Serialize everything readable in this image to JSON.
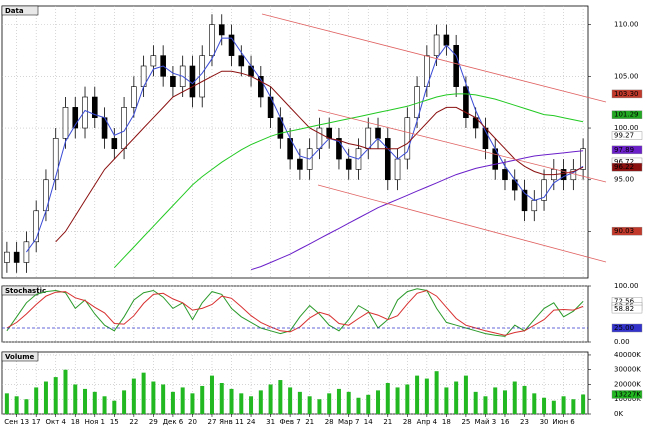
{
  "chart_data": [
    {
      "type": "candlestick",
      "title": "Data",
      "ylim": [
        85.5,
        111.8
      ],
      "yticks": [
        {
          "value": 110,
          "label": "110.00"
        },
        {
          "value": 105,
          "label": "105.00"
        },
        {
          "value": 100,
          "label": "100.00"
        },
        {
          "value": 95,
          "label": "95.00"
        },
        {
          "value": 90,
          "label": "90.00"
        }
      ],
      "grid": true,
      "open": [
        87,
        88,
        87,
        89,
        92,
        95,
        99,
        102,
        100,
        103,
        101,
        99,
        98,
        102,
        104,
        106,
        107,
        105,
        104,
        106,
        103,
        107,
        110,
        109,
        107,
        106,
        105,
        103,
        101,
        99,
        97,
        96,
        98,
        100,
        99,
        97,
        96,
        98,
        100,
        99,
        95,
        97,
        101,
        104,
        107,
        109,
        108,
        104,
        101,
        100,
        98,
        96,
        95,
        94,
        92,
        93,
        95,
        96,
        95,
        96
      ],
      "high": [
        89,
        89,
        90,
        93,
        96,
        100,
        103,
        103,
        104,
        104,
        102,
        100,
        103,
        105,
        107,
        108,
        108,
        106,
        107,
        107,
        108,
        111,
        111,
        110,
        108,
        107,
        106,
        104,
        102,
        100,
        98,
        99,
        101,
        101,
        100,
        98,
        99,
        101,
        101,
        100,
        98,
        102,
        105,
        108,
        110,
        110,
        109,
        105,
        102,
        101,
        99,
        97,
        96,
        95,
        94,
        96,
        97,
        97,
        97,
        99
      ],
      "low": [
        86,
        86,
        86,
        88,
        91,
        94,
        98,
        99,
        99,
        100,
        98,
        97,
        97,
        101,
        103,
        105,
        104,
        103,
        103,
        102,
        102,
        106,
        108,
        106,
        105,
        104,
        102,
        100,
        98,
        96,
        95,
        95,
        97,
        98,
        96,
        95,
        95,
        97,
        98,
        94,
        94,
        96,
        100,
        103,
        106,
        107,
        103,
        100,
        99,
        97,
        95,
        94,
        93,
        91,
        91,
        92,
        94,
        94,
        94,
        95
      ],
      "close": [
        88,
        87,
        89,
        92,
        95,
        99,
        102,
        100,
        103,
        101,
        99,
        98,
        102,
        104,
        106,
        107,
        105,
        104,
        106,
        103,
        107,
        110,
        109,
        107,
        106,
        105,
        103,
        101,
        99,
        97,
        96,
        98,
        100,
        99,
        97,
        96,
        98,
        100,
        99,
        95,
        97,
        101,
        104,
        107,
        109,
        108,
        104,
        101,
        100,
        98,
        96,
        95,
        94,
        92,
        93,
        95,
        96,
        95,
        96,
        98
      ],
      "series": [
        {
          "color": "#3a4bd6",
          "values": [
            null,
            null,
            88,
            89.3,
            92,
            95.3,
            98.7,
            100.3,
            101.7,
            101.3,
            101,
            99.3,
            99.7,
            101.3,
            104,
            105.7,
            106,
            105.3,
            105,
            104.3,
            105.3,
            106.7,
            108.7,
            108.7,
            107.3,
            106,
            104.7,
            103,
            101,
            99,
            97.3,
            97,
            98,
            99,
            98.7,
            97.3,
            97,
            98,
            99,
            98,
            97,
            97.7,
            100.7,
            104,
            106.7,
            108,
            107,
            104.3,
            101.7,
            99.7,
            98,
            96.3,
            95,
            93.7,
            93,
            93.3,
            94.7,
            95.3,
            95.7,
            96.3
          ]
        },
        {
          "color": "#8b1010",
          "values": [
            null,
            null,
            null,
            null,
            null,
            89,
            90,
            91.5,
            93,
            94.5,
            96,
            97,
            98,
            99,
            100,
            101,
            102,
            103,
            103.5,
            104,
            104.5,
            105,
            105.5,
            105.5,
            105.3,
            105,
            104.5,
            104,
            103,
            102,
            101,
            100,
            99.5,
            99,
            98.8,
            98.5,
            98.3,
            98,
            98,
            98,
            98,
            98.5,
            99.5,
            100.5,
            101.5,
            102,
            102,
            101.5,
            101,
            100,
            99,
            98,
            97,
            96.3,
            95.8,
            95.5,
            95.5,
            95.6,
            95.8,
            96.2
          ]
        },
        {
          "color": "#22c922",
          "values": [
            null,
            null,
            null,
            null,
            null,
            null,
            null,
            null,
            null,
            null,
            null,
            86.5,
            87.5,
            88.5,
            89.5,
            90.5,
            91.5,
            92.5,
            93.5,
            94.5,
            95.3,
            96,
            96.7,
            97.3,
            97.9,
            98.4,
            98.8,
            99.2,
            99.5,
            99.7,
            99.9,
            100.1,
            100.3,
            100.5,
            100.7,
            100.9,
            101.1,
            101.3,
            101.5,
            101.7,
            101.9,
            102.1,
            102.4,
            102.7,
            103,
            103.2,
            103.3,
            103.3,
            103.2,
            103,
            102.8,
            102.5,
            102.2,
            101.9,
            101.6,
            101.3,
            101.2,
            101,
            100.8,
            100.6
          ]
        },
        {
          "color": "#6a1fc9",
          "values": [
            null,
            null,
            null,
            null,
            null,
            null,
            null,
            null,
            null,
            null,
            null,
            null,
            null,
            null,
            null,
            null,
            null,
            null,
            null,
            null,
            null,
            null,
            null,
            null,
            null,
            86.3,
            86.6,
            87,
            87.4,
            87.8,
            88.3,
            88.8,
            89.3,
            89.8,
            90.3,
            90.8,
            91.3,
            91.8,
            92.3,
            92.7,
            93.1,
            93.5,
            93.9,
            94.3,
            94.7,
            95.1,
            95.5,
            95.8,
            96.1,
            96.3,
            96.5,
            96.7,
            96.9,
            97.1,
            97.3,
            97.4,
            97.5,
            97.6,
            97.7,
            97.8
          ]
        }
      ],
      "markers": [
        {
          "value": 103.3,
          "label": "103.30",
          "color": "#c0392b"
        },
        {
          "value": 101.29,
          "label": "101.29",
          "color": "#22a822"
        },
        {
          "value": 99.27,
          "label": "99.27",
          "color": "#ffffff"
        },
        {
          "value": 97.89,
          "label": "97.89",
          "color": "#6a1fc9"
        },
        {
          "value": 96.72,
          "label": "96.72",
          "color": "#ffffff"
        },
        {
          "value": 96.22,
          "label": "96.22",
          "color": "#8b1010"
        },
        {
          "value": 90.03,
          "label": "90.03",
          "color": "#c0392b"
        }
      ]
    },
    {
      "type": "line",
      "title": "Stochastic",
      "ylim": [
        0,
        100
      ],
      "yticks": [
        {
          "value": 100,
          "label": "100.00"
        },
        {
          "value": 0,
          "label": "0.00"
        }
      ],
      "series": [
        {
          "color": "#2a9a2a",
          "values": [
            20,
            45,
            70,
            85,
            90,
            92,
            88,
            60,
            75,
            50,
            30,
            20,
            45,
            75,
            88,
            92,
            80,
            60,
            70,
            40,
            70,
            90,
            85,
            60,
            45,
            35,
            25,
            20,
            15,
            20,
            45,
            65,
            50,
            30,
            20,
            40,
            65,
            55,
            25,
            40,
            75,
            90,
            95,
            92,
            60,
            35,
            30,
            25,
            20,
            15,
            12,
            10,
            30,
            20,
            40,
            60,
            70,
            45,
            55,
            72.56
          ]
        },
        {
          "color": "#d83030",
          "values": [
            25,
            35,
            50,
            67,
            82,
            89,
            90,
            79,
            74,
            62,
            52,
            33,
            32,
            47,
            69,
            85,
            87,
            77,
            70,
            57,
            60,
            67,
            82,
            78,
            63,
            47,
            35,
            27,
            20,
            18,
            27,
            43,
            53,
            48,
            33,
            30,
            42,
            53,
            48,
            40,
            47,
            68,
            87,
            92,
            82,
            62,
            42,
            30,
            25,
            20,
            16,
            12,
            17,
            20,
            30,
            40,
            57,
            58,
            57,
            63.55
          ]
        }
      ],
      "markers": [
        {
          "value": 72.56,
          "label": "72.56",
          "color": "#ffffff"
        },
        {
          "value": 63.55,
          "label": "63.55",
          "color": "#ffffff"
        },
        {
          "value": 58.82,
          "label": "58.82",
          "color": "#ffffff"
        },
        {
          "value": 25,
          "label": "25.00",
          "color": "#3333cc"
        }
      ]
    },
    {
      "type": "bar",
      "title": "Volume",
      "ylim": [
        0,
        42000
      ],
      "color": "#22b822",
      "yticks": [
        {
          "value": 40000,
          "label": "40000K"
        },
        {
          "value": 30000,
          "label": "30000K"
        },
        {
          "value": 20000,
          "label": "20000K"
        },
        {
          "value": 10000,
          "label": "10000K"
        },
        {
          "value": 0,
          "label": "0K"
        }
      ],
      "categories": [
        null,
        "Сен 13",
        null,
        "17",
        null,
        "Окт 4",
        null,
        "18",
        null,
        "Ноя 1",
        null,
        "15",
        null,
        "22",
        null,
        "29",
        null,
        "Дек 6",
        null,
        "20",
        null,
        "27",
        null,
        "Янв 11",
        null,
        "24",
        null,
        "31",
        null,
        "Фев 7",
        null,
        "21",
        null,
        "28",
        null,
        "Мар 7",
        null,
        "14",
        null,
        "21",
        null,
        "28",
        null,
        "Апр 4",
        null,
        "18",
        null,
        "25",
        null,
        "Май 3",
        null,
        "16",
        null,
        "23",
        null,
        "30",
        null,
        "Июн 6",
        null,
        null
      ],
      "values": [
        14000,
        12000,
        10000,
        18000,
        22000,
        25000,
        30000,
        20000,
        17000,
        15000,
        12000,
        9000,
        16000,
        24000,
        28000,
        22000,
        20000,
        15000,
        18000,
        14000,
        19000,
        26000,
        21000,
        17000,
        14000,
        12000,
        16000,
        20000,
        23000,
        18000,
        15000,
        12000,
        10000,
        14000,
        17000,
        15000,
        11000,
        13000,
        16000,
        21000,
        18000,
        20000,
        26000,
        24000,
        29000,
        18000,
        22000,
        26000,
        15000,
        12000,
        18000,
        16000,
        22000,
        19000,
        14000,
        11000,
        9000,
        12000,
        10000,
        13227
      ],
      "markers": [
        {
          "value": 13227,
          "label": "13227K",
          "color": "#22b822"
        }
      ]
    }
  ]
}
